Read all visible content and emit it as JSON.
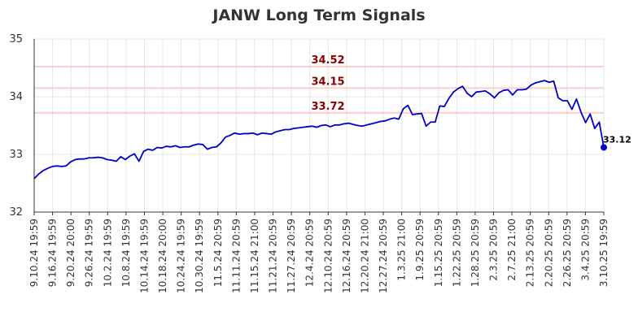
{
  "chart_data": {
    "type": "line",
    "title": "JANW Long Term Signals",
    "xlabel": "",
    "ylabel": "",
    "ylim": [
      32,
      35
    ],
    "yticks": [
      "32",
      "33",
      "34",
      "35"
    ],
    "grid": true,
    "colors": {
      "line": "#0000cc",
      "level": "#ffcccc",
      "level_text": "#8b0000",
      "grid": "#e6e6e6"
    },
    "xtick_labels": [
      "9.10.24 19:59",
      "9.16.24 19:59",
      "9.20.24 20:00",
      "9.26.24 19:59",
      "10.2.24 19:59",
      "10.8.24 19:59",
      "10.14.24 19:59",
      "10.18.24 20:00",
      "10.24.24 19:59",
      "10.30.24 19:59",
      "11.5.24 20:59",
      "11.11.24 20:59",
      "11.15.24 21:00",
      "11.21.24 20:59",
      "11.27.24 20:59",
      "12.4.24 20:59",
      "12.10.24 20:59",
      "12.16.24 20:59",
      "12.20.24 21:00",
      "12.27.24 20:59",
      "1.3.25 21:00",
      "1.9.25 20:59",
      "1.15.25 20:59",
      "1.22.25 20:59",
      "1.28.25 20:59",
      "2.3.25 20:59",
      "2.7.25 21:00",
      "2.13.25 20:59",
      "2.20.25 20:59",
      "2.26.25 20:59",
      "3.4.25 20:59",
      "3.10.25 19:59"
    ],
    "levels": [
      {
        "value": 34.52,
        "label": "34.52"
      },
      {
        "value": 34.15,
        "label": "34.15"
      },
      {
        "value": 33.72,
        "label": "33.72"
      }
    ],
    "series": [
      {
        "values": [
          32.58,
          32.66,
          32.72,
          32.76,
          32.79,
          32.8,
          32.79,
          32.8,
          32.87,
          32.91,
          32.92,
          32.92,
          32.94,
          32.94,
          32.95,
          32.94,
          32.91,
          32.9,
          32.88,
          32.96,
          32.91,
          32.97,
          33.01,
          32.88,
          33.05,
          33.09,
          33.07,
          33.12,
          33.11,
          33.14,
          33.13,
          33.15,
          33.12,
          33.13,
          33.13,
          33.16,
          33.18,
          33.17,
          33.09,
          33.12,
          33.13,
          33.2,
          33.3,
          33.33,
          33.37,
          33.35,
          33.36,
          33.36,
          33.37,
          33.34,
          33.37,
          33.36,
          33.35,
          33.39,
          33.41,
          33.43,
          33.43,
          33.45,
          33.46,
          33.47,
          33.48,
          33.49,
          33.47,
          33.5,
          33.51,
          33.48,
          33.51,
          33.51,
          33.53,
          33.54,
          33.52,
          33.5,
          33.49,
          33.51,
          33.53,
          33.55,
          33.57,
          33.58,
          33.61,
          33.63,
          33.61,
          33.79,
          33.85,
          33.69,
          33.7,
          33.71,
          33.49,
          33.56,
          33.56,
          33.84,
          33.83,
          33.97,
          34.08,
          34.14,
          34.18,
          34.06,
          34.0,
          34.08,
          34.09,
          34.1,
          34.05,
          33.98,
          34.07,
          34.11,
          34.12,
          34.03,
          34.12,
          34.12,
          34.13,
          34.2,
          34.24,
          34.26,
          34.28,
          34.25,
          34.27,
          33.98,
          33.93,
          33.93,
          33.78,
          33.96,
          33.73,
          33.55,
          33.7,
          33.45,
          33.56,
          33.12
        ]
      }
    ],
    "last_value": {
      "value": 33.12,
      "label": "33.12"
    }
  }
}
